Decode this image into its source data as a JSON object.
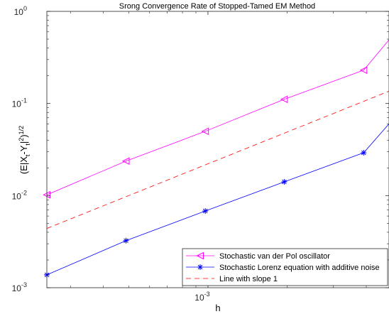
{
  "chart_data": {
    "type": "line",
    "title": "Srong Convergence Rate of Stopped-Tamed EM Method",
    "xlabel": "h",
    "ylabel": "(E|X_t-Y_t|^2)^{1/2}",
    "xscale": "log",
    "yscale": "log",
    "xlim": [
      0.000244,
      0.00488
    ],
    "ylim": [
      0.001,
      1
    ],
    "x_ticks": [
      {
        "base": "10",
        "exp": "-3",
        "value": 0.001
      }
    ],
    "y_ticks": [
      {
        "base": "10",
        "exp": "-3",
        "value": 0.001
      },
      {
        "base": "10",
        "exp": "-2",
        "value": 0.01
      },
      {
        "base": "10",
        "exp": "-1",
        "value": 0.1
      },
      {
        "base": "10",
        "exp": "0",
        "value": 1
      }
    ],
    "grid": false,
    "legend_position": "bottom-right",
    "series": [
      {
        "name": "Stochastic van der Pol oscillator",
        "color": "#ff00ff",
        "line_style": "solid",
        "marker": "triangle-left",
        "x": [
          0.000244,
          0.000488,
          0.000977,
          0.00195,
          0.00391
        ],
        "y": [
          0.0102,
          0.0237,
          0.0499,
          0.111,
          0.23
        ],
        "line_end": [
          0.00488,
          0.49
        ]
      },
      {
        "name": "Stochastic Lorenz equation with additive noise",
        "color": "#0000ff",
        "line_style": "solid",
        "marker": "asterisk",
        "x": [
          0.000244,
          0.000488,
          0.000977,
          0.00195,
          0.00391
        ],
        "y": [
          0.00138,
          0.00324,
          0.0068,
          0.0141,
          0.0292
        ],
        "line_end": [
          0.00488,
          0.06
        ]
      },
      {
        "name": "Line with slope 1",
        "color": "#ff0000",
        "line_style": "dashed",
        "marker": "none",
        "x": [
          0.000244,
          0.00488
        ],
        "y": [
          0.0044,
          0.136
        ]
      }
    ]
  }
}
